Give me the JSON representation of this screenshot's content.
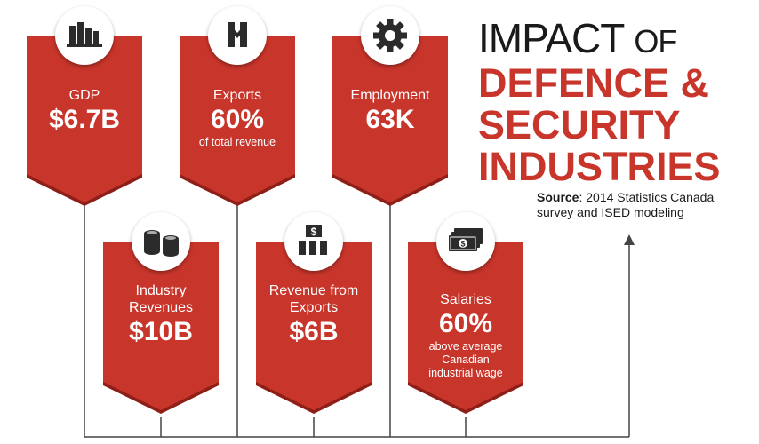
{
  "title": {
    "line1_main": "IMPACT",
    "line1_of": "OF",
    "line2": "DEFENCE &",
    "line3": "SECURITY",
    "line4": "INDUSTRIES"
  },
  "source": {
    "label": "Source",
    "text": ": 2014 Statistics Canada survey and ISED modeling"
  },
  "colors": {
    "accent": "#c8352b",
    "icon": "#2b2b2b",
    "line": "#444444"
  },
  "cards": [
    {
      "icon": "bar-chart-icon",
      "label": "GDP",
      "value": "$6.7B",
      "note": ""
    },
    {
      "icon": "export-arrows-icon",
      "label": "Exports",
      "value": "60%",
      "note": "of total revenue"
    },
    {
      "icon": "gear-icon",
      "label": "Employment",
      "value": "63K",
      "note": ""
    },
    {
      "icon": "coins-icon",
      "label": "Industry Revenues",
      "value": "$10B",
      "note": ""
    },
    {
      "icon": "money-growth-icon",
      "label": "Revenue from Exports",
      "value": "$6B",
      "note": ""
    },
    {
      "icon": "cash-icon",
      "label": "Salaries",
      "value": "60%",
      "note": "above average Canadian industrial wage"
    }
  ]
}
